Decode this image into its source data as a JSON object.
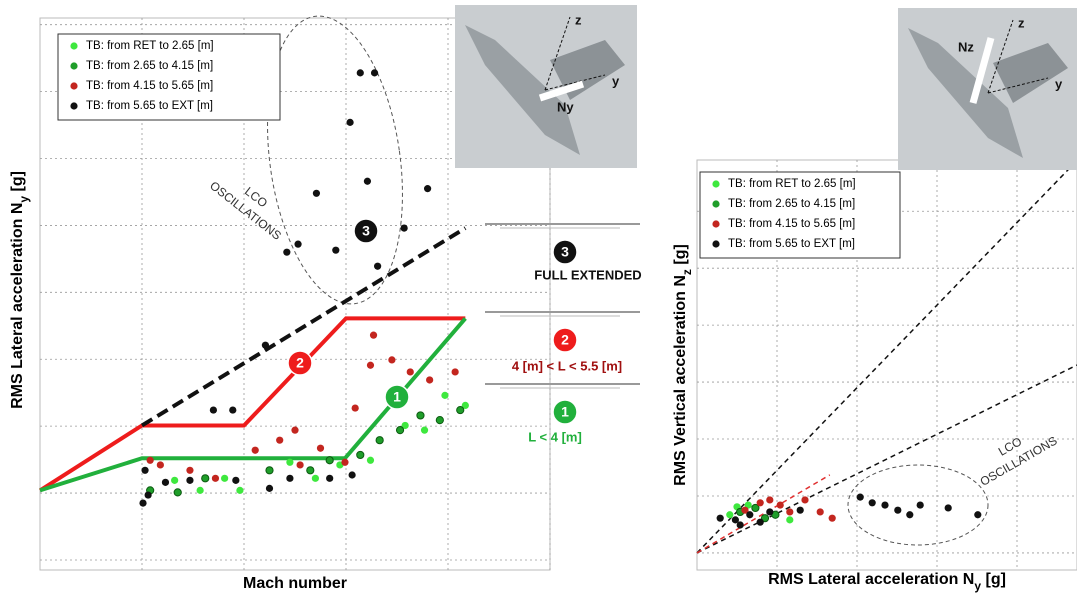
{
  "chart_data": [
    {
      "type": "scatter",
      "xlabel": [
        "Mach number"
      ],
      "ylabel": [
        "RMS Lateral acceleration N",
        "y",
        " [g]"
      ],
      "xlim": [
        0,
        5
      ],
      "ylim": [
        -0.15,
        8.1
      ],
      "grid": true,
      "legend": "upper left",
      "series": [
        {
          "name": "TB: from RET  to 2.65 [m]",
          "color": "#3ee83e",
          "x": [
            4.17,
            3.97,
            3.77,
            3.58,
            3.24,
            1.96,
            1.57,
            1.32,
            1.81,
            2.45,
            2.7,
            2.94
          ],
          "values": [
            2.31,
            2.46,
            1.94,
            2.01,
            1.49,
            1.04,
            1.04,
            1.19,
            1.22,
            1.46,
            1.22,
            1.42
          ]
        },
        {
          "name": "TB: from 2.65 to 4.15 [m]",
          "color": "#1f9e2a",
          "x": [
            3.73,
            3.92,
            4.12,
            3.53,
            3.33,
            3.14,
            1.35,
            1.62,
            2.25,
            2.65,
            2.84,
            1.08
          ],
          "values": [
            2.16,
            2.09,
            2.24,
            1.94,
            1.79,
            1.57,
            1.01,
            1.22,
            1.34,
            1.34,
            1.49,
            1.04
          ]
        },
        {
          "name": "TB: from 4.15 to 5.65 [m]",
          "color": "#c3261f",
          "x": [
            3.27,
            3.24,
            3.45,
            3.63,
            3.82,
            4.07,
            3.09,
            2.5,
            2.35,
            2.11,
            2.75,
            1.47,
            1.18,
            1.72,
            2.55,
            2.99,
            1.08
          ],
          "values": [
            3.36,
            2.91,
            2.99,
            2.81,
            2.69,
            2.81,
            2.27,
            1.94,
            1.79,
            1.64,
            1.67,
            1.34,
            1.42,
            1.22,
            1.42,
            1.46,
            1.49
          ]
        },
        {
          "name": "TB: from 5.65 to EXT  [m]",
          "color": "#111111",
          "x": [
            3.14,
            3.28,
            3.04,
            2.71,
            3.21,
            3.8,
            3.57,
            2.53,
            2.42,
            2.9,
            3.31,
            2.21,
            1.7,
            1.89,
            1.03,
            1.06,
            1.23,
            1.47,
            1.92,
            2.25,
            2.45,
            2.84,
            3.06,
            1.01
          ],
          "values": [
            7.28,
            7.28,
            6.54,
            5.48,
            5.66,
            5.55,
            4.96,
            4.72,
            4.6,
            4.63,
            4.39,
            3.21,
            2.24,
            2.24,
            1.34,
            0.97,
            1.16,
            1.19,
            1.19,
            1.07,
            1.22,
            1.22,
            1.27,
            0.85
          ]
        }
      ],
      "boundaries": [
        {
          "color": "#ee1c1c",
          "dashed": false,
          "x": [
            0,
            1,
            2,
            3,
            4.17
          ],
          "values": [
            1.04,
            2.01,
            2.01,
            3.61,
            3.61
          ]
        },
        {
          "color": "#21b03c",
          "dashed": false,
          "x": [
            0,
            1,
            2.99,
            4.17
          ],
          "values": [
            1.04,
            1.52,
            1.52,
            3.61
          ]
        },
        {
          "color": "#111111",
          "dashed": true,
          "x": [
            1,
            4.17
          ],
          "values": [
            2.01,
            4.96
          ]
        }
      ],
      "annotation": [
        "LCO",
        "OSCILLATIONS"
      ],
      "markers": [
        "1",
        "2",
        "3"
      ]
    },
    {
      "type": "scatter",
      "xlabel": [
        "RMS Lateral acceleration N",
        "y",
        " [g]"
      ],
      "ylabel": [
        "RMS Vertical acceleration N",
        "z",
        " [g]"
      ],
      "xlim": [
        0,
        4.75
      ],
      "ylim": [
        -0.3,
        6.9
      ],
      "grid": true,
      "legend": "upper left",
      "series": [
        {
          "name": "TB: from RET  to 2.65 [m]",
          "color": "#3ee83e",
          "x": [
            0.5,
            0.41,
            0.64,
            1.16
          ],
          "values": [
            0.81,
            0.67,
            0.84,
            0.58
          ]
        },
        {
          "name": "TB: from 2.65 to 4.15 [m]",
          "color": "#1f9e2a",
          "x": [
            0.54,
            0.73,
            0.98,
            0.85
          ],
          "values": [
            0.72,
            0.79,
            0.67,
            0.61
          ]
        },
        {
          "name": "TB: from 4.15 to 5.65 [m]",
          "color": "#c3261f",
          "x": [
            0.79,
            1.04,
            1.35,
            1.54,
            1.69,
            0.6,
            1.16,
            0.91
          ],
          "values": [
            0.88,
            0.84,
            0.93,
            0.72,
            0.61,
            0.75,
            0.72,
            0.93
          ]
        },
        {
          "name": "TB: from 5.65 to EXT  [m]",
          "color": "#111111",
          "x": [
            0.48,
            0.66,
            0.91,
            1.29,
            2.04,
            2.19,
            2.35,
            2.51,
            2.66,
            2.79,
            3.14,
            3.51,
            0.54,
            0.79,
            0.29
          ],
          "values": [
            0.58,
            0.67,
            0.72,
            0.75,
            0.98,
            0.88,
            0.84,
            0.75,
            0.67,
            0.84,
            0.79,
            0.67,
            0.49,
            0.54,
            0.61
          ]
        }
      ],
      "boundaries": [
        {
          "color": "#111111",
          "dashed": true,
          "x": [
            0,
            4.75
          ],
          "values": [
            0,
            6.89
          ]
        },
        {
          "color": "#111111",
          "dashed": true,
          "x": [
            0,
            4.75
          ],
          "values": [
            0,
            3.3
          ]
        },
        {
          "color": "#e03030",
          "dashed": true,
          "x": [
            0,
            1.66
          ],
          "values": [
            0,
            1.37
          ]
        }
      ],
      "annotation": [
        "LCO",
        "OSCILLATIONS"
      ]
    }
  ],
  "configurations": [
    {
      "marker": "3",
      "label": "FULL EXTENDED"
    },
    {
      "marker": "2",
      "label": "4 [m] < L < 5.5 [m]"
    },
    {
      "marker": "1",
      "label": "L < 4 [m]"
    }
  ],
  "photos": [
    {
      "labels": [
        "z",
        "y",
        "Ny"
      ]
    },
    {
      "labels": [
        "z",
        "y",
        "Nz"
      ]
    }
  ]
}
